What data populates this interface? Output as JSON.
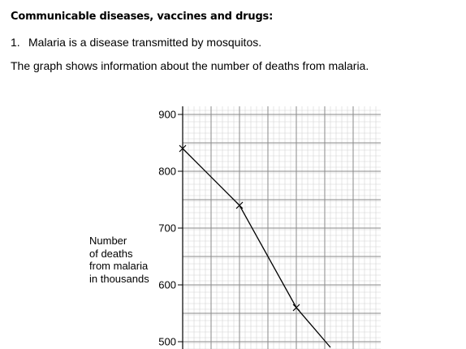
{
  "header": {
    "title": "Communicable diseases, vaccines and drugs:"
  },
  "question": {
    "number": "1.",
    "text": "Malaria is a disease transmitted by mosquitos.",
    "intro": "The graph shows information about the number of deaths from malaria."
  },
  "chart_data": {
    "type": "line",
    "title": "",
    "xlabel": "",
    "ylabel": [
      "Number",
      "of deaths",
      "from malaria",
      "in thousands"
    ],
    "yticks": [
      500,
      600,
      700,
      800,
      900
    ],
    "ylim": [
      490,
      950
    ],
    "x_units": [
      0,
      7
    ],
    "grid": true,
    "series": [
      {
        "points": [
          {
            "x": 0,
            "y": 840
          },
          {
            "x": 2,
            "y": 740
          },
          {
            "x": 4,
            "y": 560
          },
          {
            "x": 5.2,
            "y": 490
          }
        ],
        "markers": [
          true,
          true,
          true,
          false
        ]
      }
    ]
  }
}
